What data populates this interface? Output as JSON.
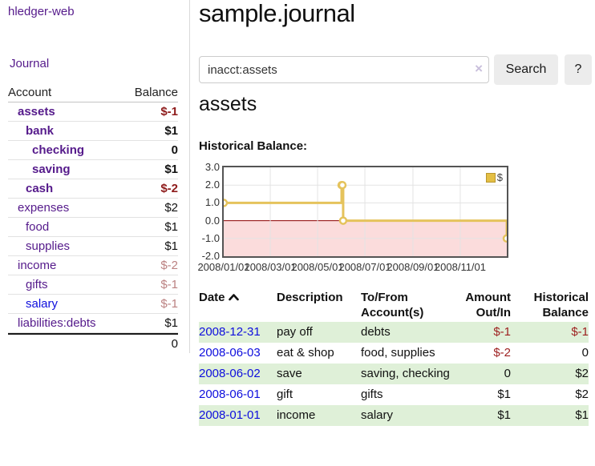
{
  "colors": {
    "link_purple": "#551a8b",
    "link_blue": "#0e0edd",
    "neg_strong": "#8e1b1b",
    "neg_muted": "#bb8181",
    "table_neg": "#9d1f1f",
    "row_green": "#dff0d8",
    "chart_line": "#e5c35c",
    "chart_fill_negative": "#fbdcdc",
    "zero_line": "#8b0000"
  },
  "sidebar": {
    "brand": "hledger-web",
    "journal_label": "Journal",
    "accounts": {
      "col_account": "Account",
      "col_balance": "Balance",
      "rows": [
        {
          "name": "assets",
          "balance": "$-1"
        },
        {
          "name": "bank",
          "balance": "$1"
        },
        {
          "name": "checking",
          "balance": "0"
        },
        {
          "name": "saving",
          "balance": "$1"
        },
        {
          "name": "cash",
          "balance": "$-2"
        },
        {
          "name": "expenses",
          "balance": "$2"
        },
        {
          "name": "food",
          "balance": "$1"
        },
        {
          "name": "supplies",
          "balance": "$1"
        },
        {
          "name": "income",
          "balance": "$-2"
        },
        {
          "name": "gifts",
          "balance": "$-1"
        },
        {
          "name": "salary",
          "balance": "$-1"
        },
        {
          "name": "liabilities:debts",
          "balance": "$1"
        }
      ],
      "total": "0"
    }
  },
  "main": {
    "title": "sample.journal",
    "search": {
      "value": "inacct:assets",
      "clear_icon": "×",
      "button_label": "Search",
      "help_label": "?"
    },
    "account_heading": "assets",
    "chart_label": "Historical Balance:"
  },
  "chart_data": {
    "type": "line",
    "step": true,
    "title": "Historical Balance:",
    "ylim": [
      -2,
      3
    ],
    "y_ticks": [
      "3.0",
      "2.0",
      "1.0",
      "0.0",
      "-1.0",
      "-2.0"
    ],
    "y_tick_values": [
      3,
      2,
      1,
      0,
      -1,
      -2
    ],
    "x_domain_days": [
      0,
      365
    ],
    "x_ticks": [
      {
        "label": "2008/01/01",
        "day": 0
      },
      {
        "label": "2008/03/01",
        "day": 60
      },
      {
        "label": "2008/05/01",
        "day": 121
      },
      {
        "label": "2008/07/01",
        "day": 182
      },
      {
        "label": "2008/09/01",
        "day": 244
      },
      {
        "label": "2008/11/01",
        "day": 305
      }
    ],
    "series": [
      {
        "name": "$",
        "points": [
          {
            "date": "2008/01/01",
            "day": 0,
            "value": 1
          },
          {
            "date": "2008/06/01",
            "day": 152,
            "value": 2
          },
          {
            "date": "2008/06/02",
            "day": 153,
            "value": 2
          },
          {
            "date": "2008/06/03",
            "day": 154,
            "value": 0
          },
          {
            "date": "2008/12/31",
            "day": 365,
            "value": -1
          }
        ]
      }
    ],
    "legend": {
      "label": "$",
      "position": "top-right"
    },
    "grid": true
  },
  "register": {
    "headers": {
      "date_l1": "Date",
      "desc_l1": "Description",
      "acct_l1": "To/From",
      "acct_l2": "Account(s)",
      "amt_l1": "Amount",
      "amt_l2": "Out/In",
      "hist_l1": "Historical",
      "hist_l2": "Balance"
    },
    "rows": [
      {
        "date": "2008-12-31",
        "description": "pay off",
        "accounts": "debts",
        "amount": "$-1",
        "balance": "$-1"
      },
      {
        "date": "2008-06-03",
        "description": "eat & shop",
        "accounts": "food, supplies",
        "amount": "$-2",
        "balance": "0"
      },
      {
        "date": "2008-06-02",
        "description": "save",
        "accounts": "saving, checking",
        "amount": "0",
        "balance": "$2"
      },
      {
        "date": "2008-06-01",
        "description": "gift",
        "accounts": "gifts",
        "amount": "$1",
        "balance": "$2"
      },
      {
        "date": "2008-01-01",
        "description": "income",
        "accounts": "salary",
        "amount": "$1",
        "balance": "$1"
      }
    ]
  }
}
